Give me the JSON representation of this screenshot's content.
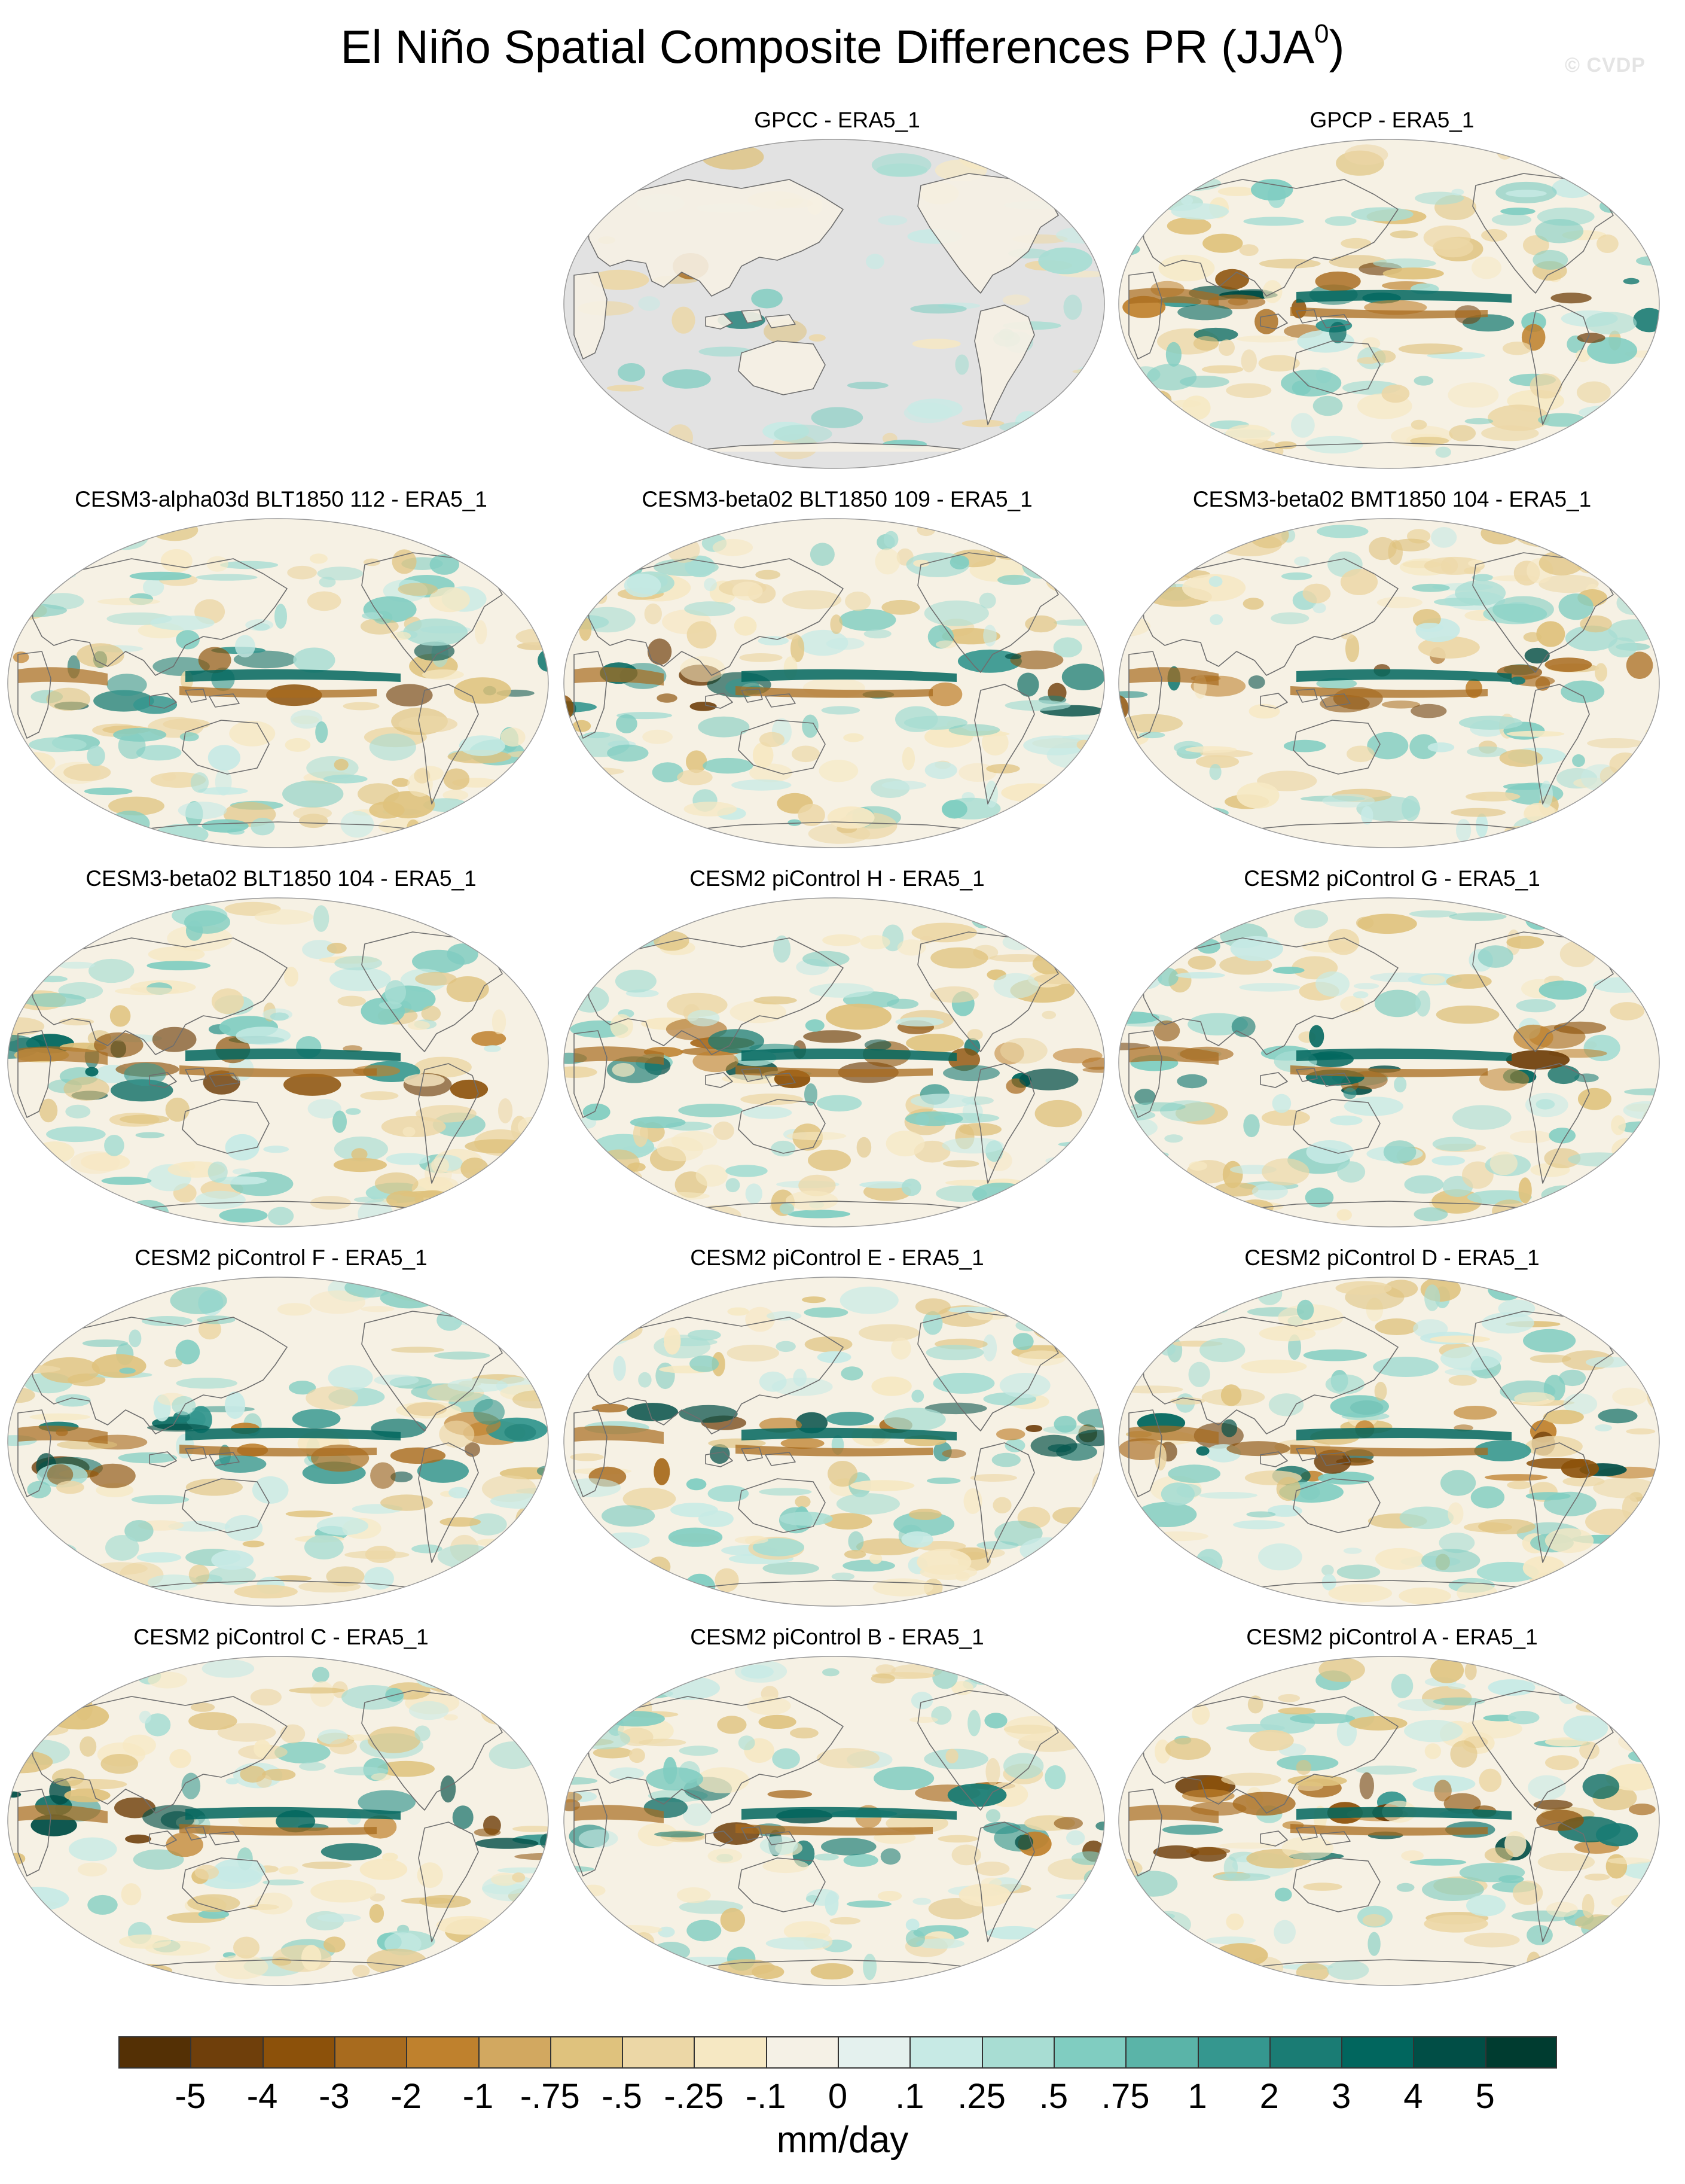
{
  "figure": {
    "title_main": "El Niño Spatial Composite Differences PR (JJA",
    "title_sup": "0",
    "title_close": ")",
    "watermark": "© CVDP"
  },
  "panels": [
    {
      "title": "GPCC - ERA5_1",
      "land_only": true
    },
    {
      "title": "GPCP - ERA5_1",
      "land_only": false
    },
    {
      "title": "CESM3-alpha03d BLT1850 112 - ERA5_1",
      "land_only": false
    },
    {
      "title": "CESM3-beta02 BLT1850 109 - ERA5_1",
      "land_only": false
    },
    {
      "title": "CESM3-beta02 BMT1850 104 - ERA5_1",
      "land_only": false
    },
    {
      "title": "CESM3-beta02 BLT1850 104 - ERA5_1",
      "land_only": false
    },
    {
      "title": "CESM2 piControl H - ERA5_1",
      "land_only": false
    },
    {
      "title": "CESM2 piControl G - ERA5_1",
      "land_only": false
    },
    {
      "title": "CESM2 piControl F - ERA5_1",
      "land_only": false
    },
    {
      "title": "CESM2 piControl E - ERA5_1",
      "land_only": false
    },
    {
      "title": "CESM2 piControl D - ERA5_1",
      "land_only": false
    },
    {
      "title": "CESM2 piControl C - ERA5_1",
      "land_only": false
    },
    {
      "title": "CESM2 piControl B - ERA5_1",
      "land_only": false
    },
    {
      "title": "CESM2 piControl A - ERA5_1",
      "land_only": false
    }
  ],
  "colorbar": {
    "unit": "mm/day",
    "labels": [
      "-5",
      "-4",
      "-3",
      "-2",
      "-1",
      "-.75",
      "-.5",
      "-.25",
      "-.1",
      "0",
      ".1",
      ".25",
      ".5",
      ".75",
      "1",
      "2",
      "3",
      "4",
      "5"
    ],
    "colors": [
      "#543005",
      "#6f3f0b",
      "#8c510a",
      "#a86b1e",
      "#bf812d",
      "#d2a860",
      "#dfc27d",
      "#ecd7a6",
      "#f6e8c3",
      "#f5f1e6",
      "#e4f1ee",
      "#c7eae5",
      "#a8ddd3",
      "#80cdc1",
      "#5ab4a8",
      "#35978f",
      "#1a7c74",
      "#01665e",
      "#014e46",
      "#003c30"
    ]
  },
  "colors": {
    "map_background": "#f6f1e4",
    "missing_fill": "#e2e2e2",
    "coastline": "#6e6e6e"
  }
}
